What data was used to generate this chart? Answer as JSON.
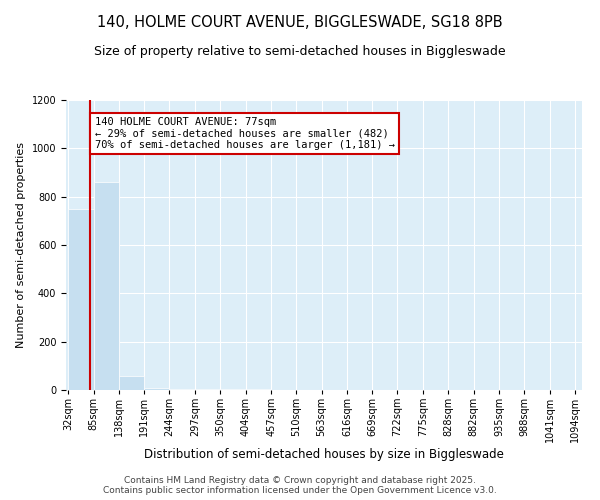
{
  "title": "140, HOLME COURT AVENUE, BIGGLESWADE, SG18 8PB",
  "subtitle": "Size of property relative to semi-detached houses in Biggleswade",
  "xlabel": "Distribution of semi-detached houses by size in Biggleswade",
  "ylabel": "Number of semi-detached properties",
  "bar_edges": [
    32,
    85,
    138,
    191,
    244,
    297,
    350,
    404,
    457,
    510,
    563,
    616,
    669,
    722,
    775,
    828,
    882,
    935,
    988,
    1041,
    1094
  ],
  "bar_heights": [
    750,
    860,
    60,
    8,
    5,
    4,
    3,
    3,
    2,
    2,
    2,
    1,
    1,
    1,
    1,
    1,
    1,
    1,
    1,
    1
  ],
  "bar_color": "#c6dff0",
  "bar_edgecolor": "#c6dff0",
  "property_value": 77,
  "property_line_color": "#cc0000",
  "annotation_text": "140 HOLME COURT AVENUE: 77sqm\n← 29% of semi-detached houses are smaller (482)\n70% of semi-detached houses are larger (1,181) →",
  "annotation_box_color": "#cc0000",
  "ylim": [
    0,
    1200
  ],
  "yticks": [
    0,
    200,
    400,
    600,
    800,
    1000,
    1200
  ],
  "background_color": "#ddeef8",
  "footer_line1": "Contains HM Land Registry data © Crown copyright and database right 2025.",
  "footer_line2": "Contains public sector information licensed under the Open Government Licence v3.0.",
  "title_fontsize": 10.5,
  "subtitle_fontsize": 9,
  "xlabel_fontsize": 8.5,
  "ylabel_fontsize": 8,
  "tick_fontsize": 7,
  "footer_fontsize": 6.5,
  "ann_fontsize": 7.5
}
